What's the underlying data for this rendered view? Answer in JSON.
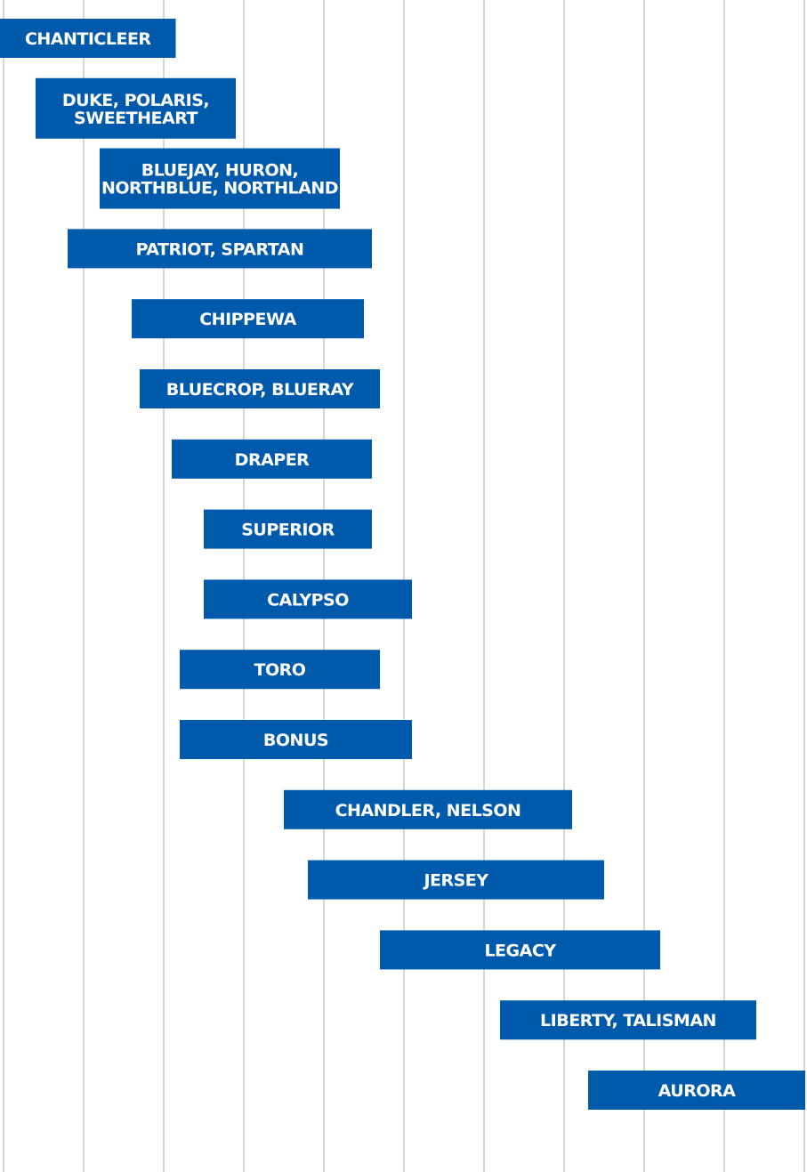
{
  "chart_data": {
    "type": "bar",
    "orientation": "horizontal-range",
    "grid": true,
    "grid_count": 10,
    "bar_color": "#005aab",
    "text_color": "#ffffff",
    "grid_color": "#d6d6d6",
    "background_color": "#ffffff",
    "xlim": [
      0,
      10
    ],
    "bars": [
      {
        "label_lines": [
          "CHANTICLEER"
        ],
        "start": -0.1,
        "end": 2.15
      },
      {
        "label_lines": [
          "DUKE, POLARIS,",
          "SWEETHEART"
        ],
        "start": 0.4,
        "end": 2.9
      },
      {
        "label_lines": [
          "BLUEJAY, HURON,",
          "NORTHBLUE, NORTHLAND"
        ],
        "start": 1.2,
        "end": 4.2
      },
      {
        "label_lines": [
          "PATRIOT, SPARTAN"
        ],
        "start": 0.8,
        "end": 4.6
      },
      {
        "label_lines": [
          "CHIPPEWA"
        ],
        "start": 1.6,
        "end": 4.5
      },
      {
        "label_lines": [
          "BLUECROP, BLUERAY"
        ],
        "start": 1.7,
        "end": 4.7
      },
      {
        "label_lines": [
          "DRAPER"
        ],
        "start": 2.1,
        "end": 4.6
      },
      {
        "label_lines": [
          "SUPERIOR"
        ],
        "start": 2.5,
        "end": 4.6
      },
      {
        "label_lines": [
          "CALYPSO"
        ],
        "start": 2.5,
        "end": 5.1
      },
      {
        "label_lines": [
          "TORO"
        ],
        "start": 2.2,
        "end": 4.7
      },
      {
        "label_lines": [
          "BONUS"
        ],
        "start": 2.2,
        "end": 5.1
      },
      {
        "label_lines": [
          "CHANDLER, NELSON"
        ],
        "start": 3.5,
        "end": 7.1
      },
      {
        "label_lines": [
          "JERSEY"
        ],
        "start": 3.8,
        "end": 7.5
      },
      {
        "label_lines": [
          "LEGACY"
        ],
        "start": 4.7,
        "end": 8.2
      },
      {
        "label_lines": [
          "LIBERTY, TALISMAN"
        ],
        "start": 6.2,
        "end": 9.4
      },
      {
        "label_lines": [
          "AURORA"
        ],
        "start": 7.3,
        "end": 10.1
      }
    ]
  }
}
